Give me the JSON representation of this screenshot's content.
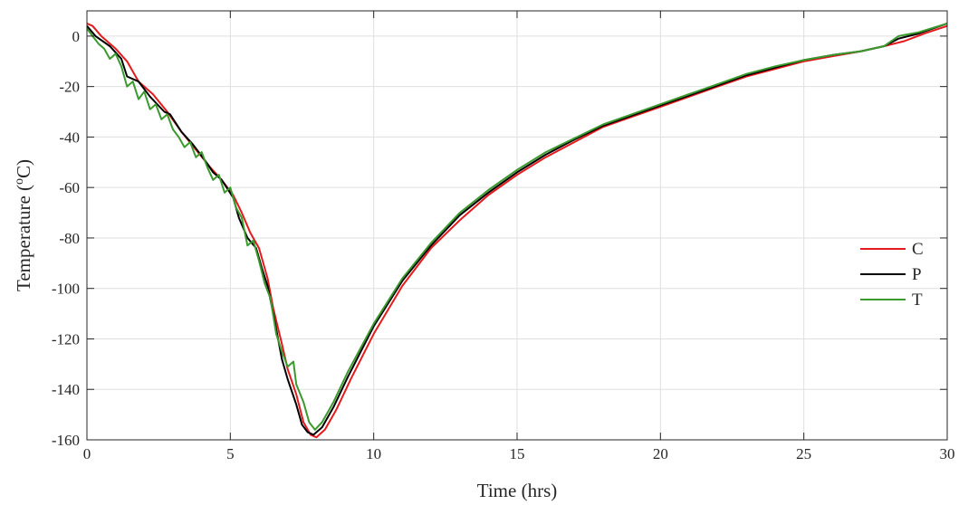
{
  "chart_data": {
    "type": "line",
    "xlabel": "Time (hrs)",
    "ylabel_main": "Temperature (",
    "ylabel_sup": "o",
    "ylabel_tail": "C)",
    "xlim": [
      0,
      30
    ],
    "ylim": [
      -160,
      10
    ],
    "xticks": [
      0,
      5,
      10,
      15,
      20,
      25,
      30
    ],
    "yticks": [
      0,
      -20,
      -40,
      -60,
      -80,
      -100,
      -120,
      -140,
      -160
    ],
    "grid": true,
    "legend_position": "right-middle",
    "series": [
      {
        "name": "C",
        "color": "#e41a1c",
        "points": [
          [
            0,
            5
          ],
          [
            0.2,
            4
          ],
          [
            0.5,
            0
          ],
          [
            1,
            -5
          ],
          [
            1.4,
            -10
          ],
          [
            1.8,
            -18
          ],
          [
            2.3,
            -23
          ],
          [
            2.8,
            -30
          ],
          [
            3.3,
            -38
          ],
          [
            3.8,
            -45
          ],
          [
            4.3,
            -52
          ],
          [
            4.7,
            -57
          ],
          [
            5.1,
            -63
          ],
          [
            5.4,
            -70
          ],
          [
            5.7,
            -78
          ],
          [
            6.0,
            -84
          ],
          [
            6.3,
            -96
          ],
          [
            6.5,
            -108
          ],
          [
            6.8,
            -122
          ],
          [
            7.0,
            -132
          ],
          [
            7.3,
            -142
          ],
          [
            7.55,
            -153
          ],
          [
            7.8,
            -158
          ],
          [
            8.0,
            -159
          ],
          [
            8.3,
            -156
          ],
          [
            8.7,
            -148
          ],
          [
            9.2,
            -136
          ],
          [
            10,
            -118
          ],
          [
            11,
            -99
          ],
          [
            12,
            -84
          ],
          [
            13,
            -73
          ],
          [
            14,
            -63
          ],
          [
            15,
            -55
          ],
          [
            16,
            -48
          ],
          [
            17,
            -42
          ],
          [
            18,
            -36
          ],
          [
            19,
            -32
          ],
          [
            20,
            -28
          ],
          [
            21,
            -24
          ],
          [
            22,
            -20
          ],
          [
            23,
            -16
          ],
          [
            24,
            -13
          ],
          [
            25,
            -10
          ],
          [
            26,
            -8
          ],
          [
            27,
            -6
          ],
          [
            27.8,
            -4
          ],
          [
            28.5,
            -2
          ],
          [
            29.2,
            1
          ],
          [
            30,
            4
          ]
        ]
      },
      {
        "name": "P",
        "color": "#000000",
        "points": [
          [
            0,
            4
          ],
          [
            0.3,
            0
          ],
          [
            0.8,
            -4
          ],
          [
            1.2,
            -9
          ],
          [
            1.4,
            -16
          ],
          [
            1.8,
            -18
          ],
          [
            2.2,
            -24
          ],
          [
            2.7,
            -30
          ],
          [
            2.9,
            -31
          ],
          [
            3.3,
            -38
          ],
          [
            3.7,
            -43
          ],
          [
            4.1,
            -49
          ],
          [
            4.4,
            -54
          ],
          [
            4.7,
            -57
          ],
          [
            5.1,
            -64
          ],
          [
            5.3,
            -72
          ],
          [
            5.6,
            -80
          ],
          [
            5.9,
            -84
          ],
          [
            6.1,
            -92
          ],
          [
            6.3,
            -99
          ],
          [
            6.5,
            -110
          ],
          [
            6.8,
            -128
          ],
          [
            7.0,
            -136
          ],
          [
            7.3,
            -146
          ],
          [
            7.5,
            -154
          ],
          [
            7.7,
            -157
          ],
          [
            7.9,
            -158
          ],
          [
            8.2,
            -155
          ],
          [
            8.6,
            -147
          ],
          [
            9.1,
            -135
          ],
          [
            10,
            -115
          ],
          [
            11,
            -97
          ],
          [
            12,
            -83
          ],
          [
            13,
            -71
          ],
          [
            14,
            -62
          ],
          [
            15,
            -54
          ],
          [
            16,
            -47
          ],
          [
            17,
            -41
          ],
          [
            18,
            -35.5
          ],
          [
            19,
            -31.5
          ],
          [
            20,
            -27.5
          ],
          [
            21,
            -23.5
          ],
          [
            22,
            -19.5
          ],
          [
            23,
            -15.5
          ],
          [
            24,
            -12.5
          ],
          [
            25,
            -9.5
          ],
          [
            26,
            -7.5
          ],
          [
            27,
            -6
          ],
          [
            27.8,
            -4
          ],
          [
            28.3,
            -1
          ],
          [
            29,
            1
          ],
          [
            30,
            5
          ]
        ]
      },
      {
        "name": "T",
        "color": "#3a9a2e",
        "points": [
          [
            0,
            3
          ],
          [
            0.2,
            0
          ],
          [
            0.4,
            -3
          ],
          [
            0.6,
            -5
          ],
          [
            0.8,
            -9
          ],
          [
            1.0,
            -7
          ],
          [
            1.2,
            -12
          ],
          [
            1.4,
            -20
          ],
          [
            1.6,
            -18
          ],
          [
            1.8,
            -25
          ],
          [
            2.0,
            -22
          ],
          [
            2.2,
            -29
          ],
          [
            2.4,
            -27
          ],
          [
            2.6,
            -33
          ],
          [
            2.8,
            -31
          ],
          [
            3.0,
            -37
          ],
          [
            3.2,
            -40
          ],
          [
            3.4,
            -44
          ],
          [
            3.6,
            -42
          ],
          [
            3.8,
            -48
          ],
          [
            4.0,
            -46
          ],
          [
            4.2,
            -52
          ],
          [
            4.4,
            -57
          ],
          [
            4.6,
            -55
          ],
          [
            4.8,
            -62
          ],
          [
            5.0,
            -60
          ],
          [
            5.2,
            -68
          ],
          [
            5.4,
            -72
          ],
          [
            5.6,
            -83
          ],
          [
            5.8,
            -81
          ],
          [
            6.0,
            -89
          ],
          [
            6.2,
            -98
          ],
          [
            6.4,
            -104
          ],
          [
            6.6,
            -118
          ],
          [
            6.8,
            -125
          ],
          [
            7.0,
            -131
          ],
          [
            7.2,
            -129
          ],
          [
            7.3,
            -138
          ],
          [
            7.55,
            -145
          ],
          [
            7.75,
            -153
          ],
          [
            7.95,
            -156
          ],
          [
            8.2,
            -153
          ],
          [
            8.6,
            -145
          ],
          [
            9.1,
            -133
          ],
          [
            10,
            -114
          ],
          [
            11,
            -96
          ],
          [
            12,
            -82
          ],
          [
            13,
            -70
          ],
          [
            14,
            -61
          ],
          [
            15,
            -53
          ],
          [
            16,
            -46
          ],
          [
            17,
            -40.5
          ],
          [
            18,
            -35
          ],
          [
            19,
            -31
          ],
          [
            20,
            -27
          ],
          [
            21,
            -23
          ],
          [
            22,
            -19
          ],
          [
            23,
            -15
          ],
          [
            24,
            -12
          ],
          [
            25,
            -9.5
          ],
          [
            26,
            -7.5
          ],
          [
            27,
            -6
          ],
          [
            27.8,
            -4
          ],
          [
            28.3,
            0
          ],
          [
            29,
            1.5
          ],
          [
            30,
            5
          ]
        ]
      }
    ]
  }
}
